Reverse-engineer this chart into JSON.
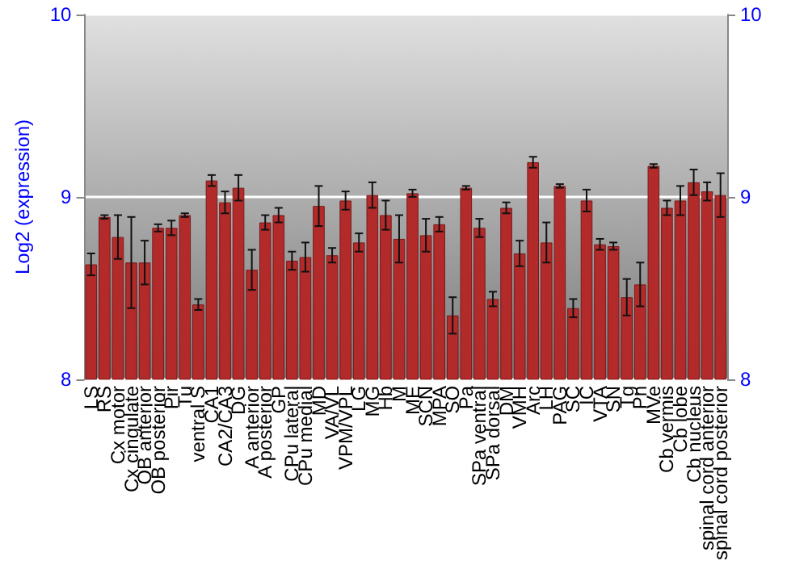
{
  "chart_data": {
    "type": "bar",
    "ylabel": "Log2 (expression)",
    "categories": [
      "LS",
      "RS",
      "Cx motor",
      "Cx cingulate",
      "OB anterior",
      "OB posterior",
      "Pir",
      "Tu",
      "ventral S",
      "CA1",
      "CA2/CA3",
      "DG",
      "A anterior",
      "A posterior",
      "GP",
      "CPu lateral",
      "CPu medial",
      "MD",
      "VA/VL",
      "VPM/VPL",
      "LG",
      "MG",
      "Hb",
      "M",
      "ME",
      "SCN",
      "MPA",
      "SO",
      "Pa",
      "SPa ventral",
      "SPa dorsal",
      "DM",
      "VMH",
      "Arc",
      "LH",
      "PAG",
      "SC",
      "IC",
      "VTA",
      "SN",
      "Tg",
      "Pn",
      "MVe",
      "Cb vermis",
      "Cb lobe",
      "Cb nucleus",
      "spinal cord anterior",
      "spinal cord posterior"
    ],
    "values": [
      8.63,
      8.89,
      8.78,
      8.64,
      8.64,
      8.83,
      8.83,
      8.9,
      8.41,
      9.09,
      8.97,
      9.05,
      8.6,
      8.86,
      8.9,
      8.65,
      8.67,
      8.95,
      8.68,
      8.98,
      8.75,
      9.01,
      8.9,
      8.77,
      9.02,
      8.79,
      8.85,
      8.35,
      9.05,
      8.83,
      8.44,
      8.94,
      8.69,
      9.19,
      8.75,
      9.06,
      8.39,
      8.98,
      8.74,
      8.73,
      8.45,
      8.52,
      9.17,
      8.94,
      8.98,
      9.08,
      9.03,
      9.01
    ],
    "errors": [
      0.06,
      0.01,
      0.12,
      0.25,
      0.12,
      0.02,
      0.04,
      0.01,
      0.03,
      0.03,
      0.06,
      0.07,
      0.11,
      0.04,
      0.04,
      0.05,
      0.08,
      0.11,
      0.04,
      0.05,
      0.05,
      0.07,
      0.08,
      0.13,
      0.02,
      0.09,
      0.04,
      0.1,
      0.01,
      0.05,
      0.04,
      0.03,
      0.07,
      0.03,
      0.11,
      0.01,
      0.05,
      0.06,
      0.03,
      0.02,
      0.1,
      0.12,
      0.01,
      0.04,
      0.08,
      0.07,
      0.05,
      0.12
    ],
    "color": "#b22a2a",
    "ylim": [
      8,
      10
    ],
    "yticks": [
      8,
      9,
      10
    ],
    "y2lim": [
      8,
      10
    ],
    "y2ticks": [
      8,
      9,
      10
    ],
    "grid": "y"
  }
}
